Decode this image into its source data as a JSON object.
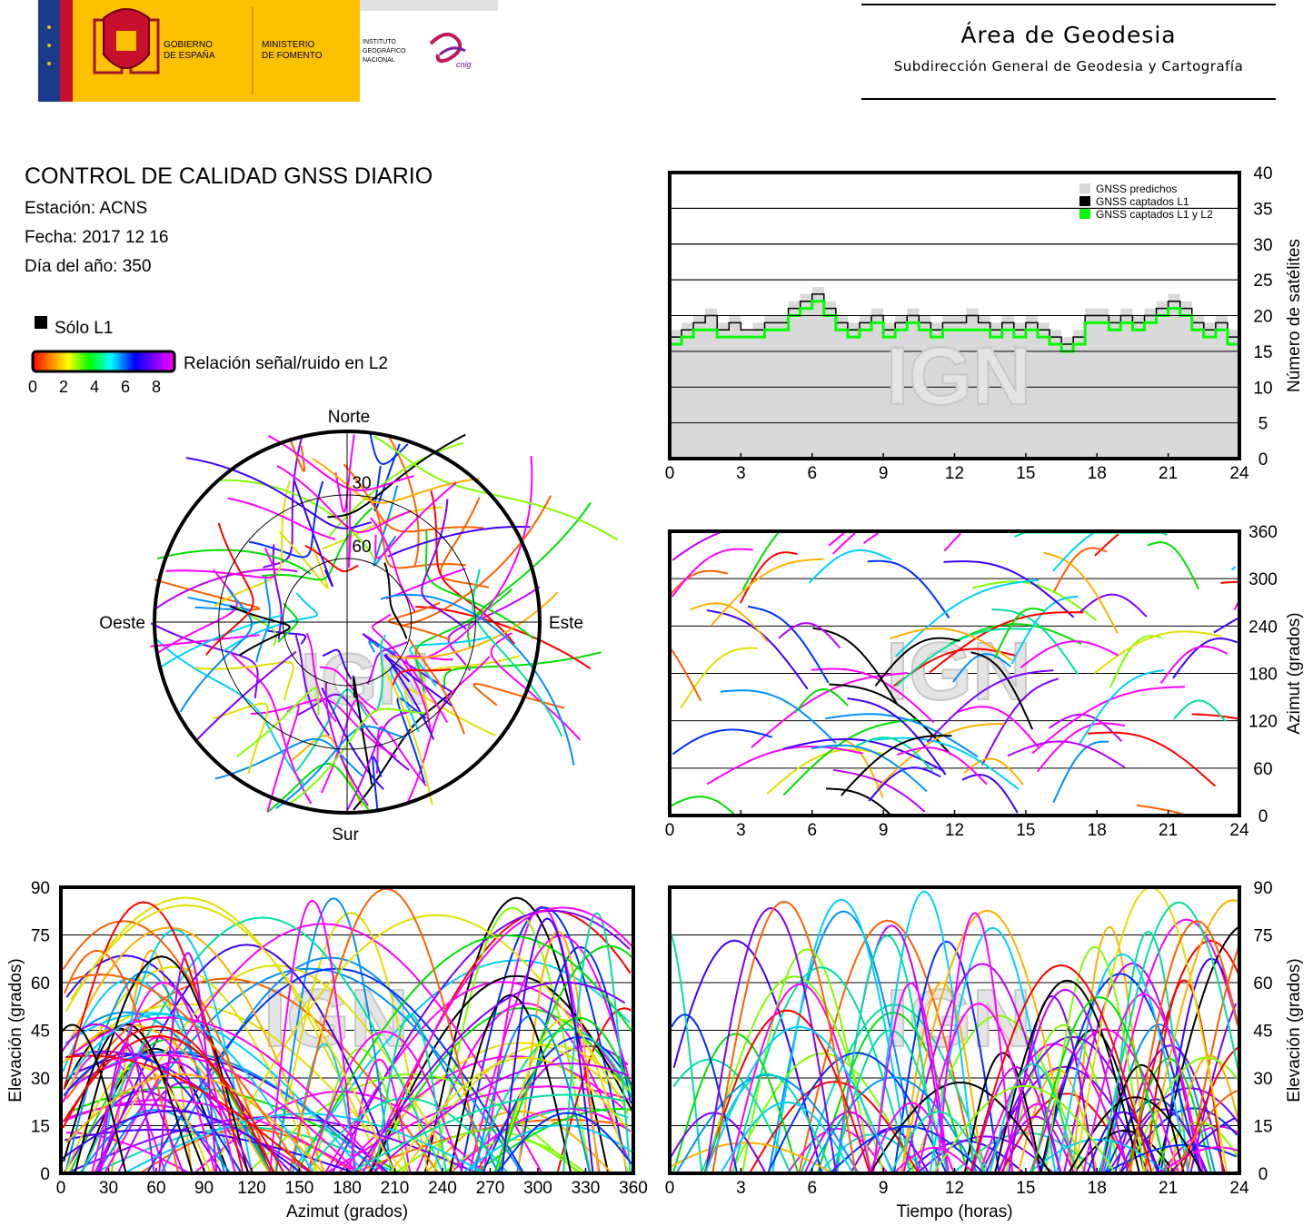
{
  "header": {
    "gov_line1": "GOBIERNO",
    "gov_line2": "DE ESPAÑA",
    "ministry_line1": "MINISTERIO",
    "ministry_line2": "DE FOMENTO",
    "ign_line1": "INSTITUTO",
    "ign_line2": "GEOGRÁFICO",
    "ign_line3": "NACIONAL",
    "cnig_logo": "cnig",
    "area_title": "Área de Geodesia",
    "area_subtitle": "Subdirección General de Geodesia y Cartografía"
  },
  "info": {
    "title": "CONTROL DE CALIDAD GNSS DIARIO",
    "station": "Estación: ACNS",
    "date": "Fecha: 2017 12 16",
    "doy": "Día del año: 350"
  },
  "legend": {
    "l1_only": "Sólo L1",
    "snr_label": "Relación señal/ruido en L2",
    "snr_ticks": [
      "0",
      "2",
      "4",
      "6",
      "8"
    ],
    "colors": {
      "l1_only": "#000000",
      "predicted": "#d9d9d9",
      "captured_l1": "#000000",
      "captured_l1_l2": "#00ff00"
    }
  },
  "watermark": "IGN",
  "chart_data": [
    {
      "type": "area",
      "xlabel": "",
      "ylabel": "Número de satélites",
      "xlim": [
        0,
        24
      ],
      "ylim": [
        0,
        40
      ],
      "xticks": [
        "0",
        "3",
        "6",
        "9",
        "12",
        "15",
        "18",
        "21",
        "24"
      ],
      "yticks": [
        "0",
        "5",
        "10",
        "15",
        "20",
        "25",
        "30",
        "35",
        "40"
      ],
      "legend_position": "top-right",
      "grid": true,
      "legend": [
        "GNSS predichos",
        "GNSS captados L1",
        "GNSS captados L1 y L2"
      ],
      "x": [
        0,
        0.5,
        1,
        1.5,
        2,
        2.5,
        3,
        3.5,
        4,
        4.5,
        5,
        5.5,
        6,
        6.5,
        7,
        7.5,
        8,
        8.5,
        9,
        9.5,
        10,
        10.5,
        11,
        11.5,
        12,
        12.5,
        13,
        13.5,
        14,
        14.5,
        15,
        15.5,
        16,
        16.5,
        17,
        17.5,
        18,
        18.5,
        19,
        19.5,
        20,
        20.5,
        21,
        21.5,
        22,
        22.5,
        23,
        23.5,
        24
      ],
      "series": [
        {
          "name": "GNSS predichos",
          "values": [
            18,
            19,
            20,
            21,
            19,
            20,
            18,
            19,
            20,
            20,
            22,
            23,
            24,
            22,
            20,
            19,
            20,
            21,
            19,
            20,
            21,
            20,
            19,
            20,
            20,
            21,
            20,
            19,
            20,
            19,
            20,
            19,
            18,
            17,
            18,
            21,
            21,
            20,
            21,
            20,
            21,
            22,
            23,
            22,
            20,
            19,
            20,
            18,
            18
          ]
        },
        {
          "name": "GNSS captados L1",
          "values": [
            17,
            18,
            19,
            20,
            18,
            19,
            18,
            18,
            19,
            19,
            21,
            22,
            23,
            21,
            19,
            18,
            19,
            20,
            18,
            19,
            20,
            19,
            18,
            19,
            19,
            20,
            19,
            18,
            19,
            18,
            19,
            18,
            17,
            16,
            17,
            20,
            20,
            19,
            20,
            19,
            20,
            21,
            22,
            21,
            19,
            18,
            19,
            17,
            17
          ]
        },
        {
          "name": "GNSS captados L1 y L2",
          "values": [
            16,
            17,
            18,
            18,
            17,
            17,
            17,
            17,
            18,
            18,
            20,
            21,
            22,
            20,
            18,
            17,
            18,
            19,
            17,
            18,
            19,
            18,
            17,
            18,
            18,
            18,
            18,
            17,
            18,
            17,
            18,
            17,
            16,
            15,
            16,
            19,
            19,
            18,
            19,
            18,
            19,
            20,
            21,
            20,
            18,
            17,
            18,
            16,
            16
          ]
        }
      ]
    },
    {
      "type": "line",
      "xlabel": "",
      "ylabel": "Azimut (grados)",
      "xlim": [
        0,
        24
      ],
      "ylim": [
        0,
        360
      ],
      "xticks": [
        "0",
        "3",
        "6",
        "9",
        "12",
        "15",
        "18",
        "21",
        "24"
      ],
      "yticks": [
        "0",
        "60",
        "120",
        "180",
        "240",
        "300",
        "360"
      ],
      "grid": true
    },
    {
      "type": "line",
      "xlabel": "Azimut (grados)",
      "ylabel": "Elevación (grados)",
      "xlim": [
        0,
        360
      ],
      "ylim": [
        0,
        90
      ],
      "xticks": [
        "0",
        "30",
        "60",
        "90",
        "120",
        "150",
        "180",
        "210",
        "240",
        "270",
        "300",
        "330",
        "360"
      ],
      "yticks": [
        "0",
        "15",
        "30",
        "45",
        "60",
        "75",
        "90"
      ],
      "grid": true
    },
    {
      "type": "line",
      "xlabel": "Tiempo (horas)",
      "ylabel": "Elevación (grados)",
      "xlim": [
        0,
        24
      ],
      "ylim": [
        0,
        90
      ],
      "xticks": [
        "0",
        "3",
        "6",
        "9",
        "12",
        "15",
        "18",
        "21",
        "24"
      ],
      "yticks": [
        "0",
        "15",
        "30",
        "45",
        "60",
        "75",
        "90"
      ],
      "grid": true
    },
    {
      "type": "scatter",
      "title": "",
      "labels": {
        "north": "Norte",
        "south": "Sur",
        "east": "Este",
        "west": "Oeste"
      },
      "rings": [
        "30",
        "60"
      ]
    }
  ]
}
